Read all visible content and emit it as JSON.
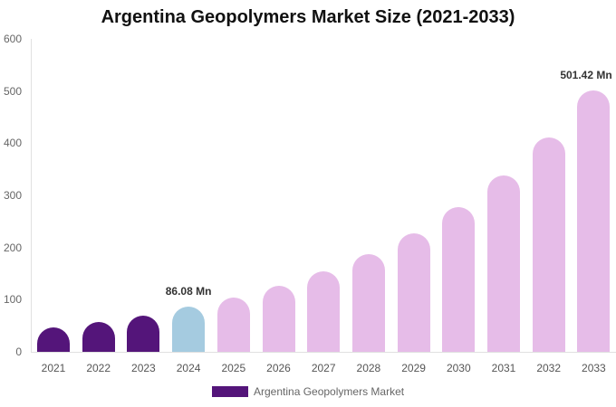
{
  "chart_data": {
    "type": "bar",
    "title": "Argentina Geopolymers Market Size (2021-2033)",
    "xlabel": "",
    "ylabel": "",
    "ylim": [
      0,
      600
    ],
    "yticks": [
      0,
      100,
      200,
      300,
      400,
      500,
      600
    ],
    "grid": false,
    "legend_position": "bottom",
    "categories": [
      "2021",
      "2022",
      "2023",
      "2024",
      "2025",
      "2026",
      "2027",
      "2028",
      "2029",
      "2030",
      "2031",
      "2032",
      "2033"
    ],
    "series": [
      {
        "name": "Argentina Geopolymers Market",
        "values": [
          47,
          57,
          69,
          86.08,
          104,
          127,
          154,
          187,
          227,
          277,
          338,
          411,
          501.42
        ]
      }
    ],
    "annotations": [
      {
        "category": "2024",
        "text": "86.08 Mn"
      },
      {
        "category": "2033",
        "text": "501.42 Mn"
      }
    ],
    "colors": {
      "historical": "#54157a",
      "base_year": "#a5cbe0",
      "forecast": "#e6bce8"
    }
  },
  "legend": {
    "label": "Argentina Geopolymers Market",
    "color": "#54157a"
  }
}
